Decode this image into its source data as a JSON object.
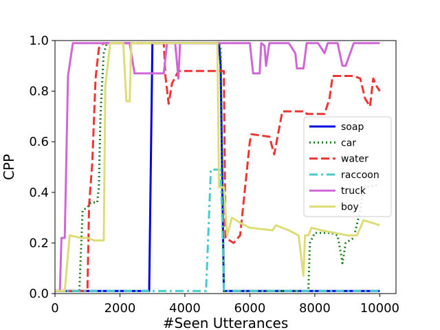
{
  "chart_data": {
    "type": "line",
    "xlabel": "#Seen Utterances",
    "ylabel": "CPP",
    "xlim": [
      0,
      10500
    ],
    "ylim": [
      0,
      1.0
    ],
    "xticks": [
      0,
      2000,
      4000,
      6000,
      8000,
      10000
    ],
    "xtick_labels": [
      "0",
      "2000",
      "4000",
      "6000",
      "8000",
      "10000"
    ],
    "yticks": [
      0.0,
      0.2,
      0.4,
      0.6,
      0.8,
      1.0
    ],
    "ytick_labels": [
      "0.0",
      "0.2",
      "0.4",
      "0.6",
      "0.8",
      "1.0"
    ],
    "grid": false,
    "legend_position": "center-right",
    "series": [
      {
        "name": "soap",
        "color": "#0000dd",
        "dash": "solid",
        "points": [
          [
            0,
            0.01
          ],
          [
            2900,
            0.01
          ],
          [
            3000,
            0.99
          ],
          [
            5050,
            0.99
          ],
          [
            5100,
            0.9
          ],
          [
            5200,
            0.01
          ],
          [
            10000,
            0.01
          ]
        ]
      },
      {
        "name": "car",
        "color": "#1a7a1a",
        "dash": "dotted",
        "points": [
          [
            0,
            0.01
          ],
          [
            750,
            0.01
          ],
          [
            850,
            0.33
          ],
          [
            1000,
            0.34
          ],
          [
            1100,
            0.36
          ],
          [
            1300,
            0.36
          ],
          [
            1350,
            0.42
          ],
          [
            1400,
            0.7
          ],
          [
            1500,
            0.95
          ],
          [
            1600,
            0.99
          ],
          [
            5000,
            0.99
          ],
          [
            5100,
            0.98
          ],
          [
            5200,
            0.01
          ],
          [
            7800,
            0.01
          ],
          [
            7850,
            0.2
          ],
          [
            8000,
            0.24
          ],
          [
            8500,
            0.24
          ],
          [
            8700,
            0.23
          ],
          [
            8800,
            0.16
          ],
          [
            8850,
            0.12
          ],
          [
            8950,
            0.2
          ],
          [
            9200,
            0.22
          ],
          [
            9400,
            0.33
          ],
          [
            9500,
            0.42
          ],
          [
            10000,
            0.43
          ]
        ]
      },
      {
        "name": "water",
        "color": "#ee3333",
        "dash": "dashed",
        "points": [
          [
            0,
            0.01
          ],
          [
            1000,
            0.01
          ],
          [
            1050,
            0.35
          ],
          [
            1150,
            0.52
          ],
          [
            1250,
            0.85
          ],
          [
            1350,
            0.97
          ],
          [
            1500,
            0.99
          ],
          [
            3350,
            0.99
          ],
          [
            3400,
            0.86
          ],
          [
            3500,
            0.75
          ],
          [
            3600,
            0.83
          ],
          [
            3800,
            0.88
          ],
          [
            5200,
            0.88
          ],
          [
            5250,
            0.22
          ],
          [
            5500,
            0.2
          ],
          [
            5700,
            0.23
          ],
          [
            6000,
            0.6
          ],
          [
            6050,
            0.63
          ],
          [
            6600,
            0.62
          ],
          [
            6750,
            0.55
          ],
          [
            7000,
            0.72
          ],
          [
            7700,
            0.72
          ],
          [
            7750,
            0.71
          ],
          [
            8300,
            0.71
          ],
          [
            8450,
            0.77
          ],
          [
            8550,
            0.86
          ],
          [
            9200,
            0.86
          ],
          [
            9400,
            0.85
          ],
          [
            9550,
            0.77
          ],
          [
            9700,
            0.74
          ],
          [
            9800,
            0.85
          ],
          [
            9900,
            0.82
          ],
          [
            10000,
            0.8
          ]
        ]
      },
      {
        "name": "raccoon",
        "color": "#44cccc",
        "dash": "dashdot",
        "points": [
          [
            0,
            0.01
          ],
          [
            4650,
            0.01
          ],
          [
            4800,
            0.49
          ],
          [
            5100,
            0.49
          ],
          [
            5150,
            0.3
          ],
          [
            5200,
            0.01
          ],
          [
            10000,
            0.01
          ]
        ]
      },
      {
        "name": "truck",
        "color": "#d066d6",
        "dash": "solid",
        "points": [
          [
            0,
            0.01
          ],
          [
            150,
            0.01
          ],
          [
            200,
            0.22
          ],
          [
            300,
            0.22
          ],
          [
            400,
            0.86
          ],
          [
            550,
            0.99
          ],
          [
            2300,
            0.99
          ],
          [
            2450,
            0.87
          ],
          [
            3350,
            0.87
          ],
          [
            3450,
            0.99
          ],
          [
            3700,
            0.99
          ],
          [
            3800,
            0.85
          ],
          [
            3850,
            0.99
          ],
          [
            5200,
            0.99
          ],
          [
            6000,
            0.99
          ],
          [
            6100,
            0.87
          ],
          [
            6300,
            0.87
          ],
          [
            6350,
            0.99
          ],
          [
            6450,
            0.98
          ],
          [
            6500,
            0.9
          ],
          [
            6600,
            0.99
          ],
          [
            7200,
            0.99
          ],
          [
            7400,
            0.95
          ],
          [
            7450,
            0.89
          ],
          [
            7650,
            0.89
          ],
          [
            7750,
            0.99
          ],
          [
            8100,
            0.99
          ],
          [
            8300,
            0.95
          ],
          [
            8400,
            0.99
          ],
          [
            8700,
            0.99
          ],
          [
            8850,
            0.9
          ],
          [
            8950,
            0.9
          ],
          [
            9200,
            0.99
          ],
          [
            10000,
            0.99
          ]
        ]
      },
      {
        "name": "boy",
        "color": "#dddd77",
        "dash": "solid",
        "points": [
          [
            0,
            0.01
          ],
          [
            300,
            0.01
          ],
          [
            450,
            0.23
          ],
          [
            800,
            0.22
          ],
          [
            1000,
            0.22
          ],
          [
            1200,
            0.21
          ],
          [
            1500,
            0.21
          ],
          [
            1550,
            0.82
          ],
          [
            1700,
            0.99
          ],
          [
            2000,
            0.99
          ],
          [
            2100,
            0.99
          ],
          [
            2200,
            0.76
          ],
          [
            2300,
            0.76
          ],
          [
            2350,
            0.99
          ],
          [
            5000,
            0.99
          ],
          [
            5050,
            0.42
          ],
          [
            5200,
            0.42
          ],
          [
            5300,
            0.23
          ],
          [
            5450,
            0.3
          ],
          [
            5700,
            0.28
          ],
          [
            6000,
            0.26
          ],
          [
            6700,
            0.25
          ],
          [
            6800,
            0.27
          ],
          [
            7200,
            0.25
          ],
          [
            7500,
            0.23
          ],
          [
            7650,
            0.07
          ],
          [
            7700,
            0.23
          ],
          [
            7800,
            0.23
          ],
          [
            7900,
            0.26
          ],
          [
            8200,
            0.25
          ],
          [
            8600,
            0.24
          ],
          [
            9000,
            0.23
          ],
          [
            9300,
            0.23
          ],
          [
            9500,
            0.29
          ],
          [
            10000,
            0.27
          ]
        ]
      }
    ]
  }
}
